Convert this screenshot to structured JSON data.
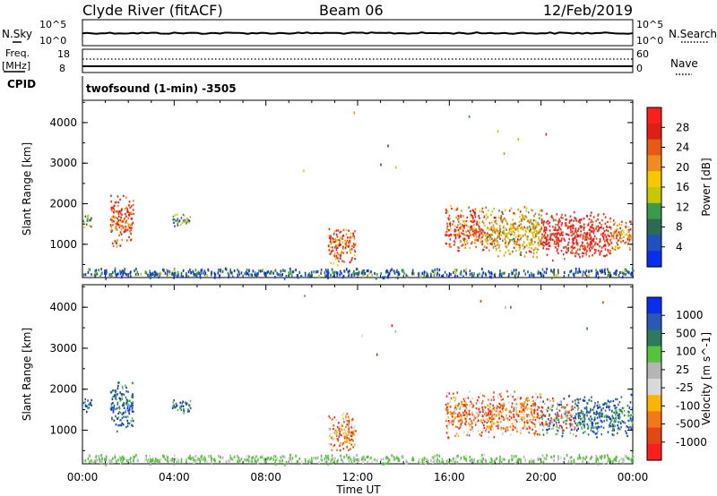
{
  "header": {
    "station": "Clyde River (fitACF)",
    "beam": "Beam 06",
    "date": "12/Feb/2019"
  },
  "strip_panels": {
    "nsky_label": "N.Sky",
    "nsearch_label": "N.Search",
    "noise_ticks": [
      "10^5",
      "10^0"
    ],
    "freq_label": "Freq.",
    "freq_unit": "[MHz]",
    "freq_ticks": [
      "18",
      "8"
    ],
    "nave_label": "Nave",
    "nave_ticks": [
      "60",
      "0"
    ],
    "cpid_label": "CPID",
    "cpid_text": "twofsound (1-min) -3505"
  },
  "colors": {
    "power": [
      "#0a2ef0",
      "#1f4fc0",
      "#2e6a50",
      "#3c9a4a",
      "#c8c800",
      "#f5c800",
      "#f08c1e",
      "#e85a14",
      "#e01e14",
      "#ff1e1e"
    ],
    "velocity": [
      "#0a2ef0",
      "#2a58b4",
      "#2e7a5e",
      "#55c43c",
      "#b5b5b5",
      "#d9d9d9",
      "#ffb400",
      "#f57814",
      "#e64614",
      "#ff1e1e"
    ]
  },
  "chart_data": [
    {
      "type": "line",
      "title": "",
      "x_label": "",
      "y_label": "",
      "y_ticks_left": [
        "10^5",
        "10^0"
      ],
      "y_ticks_right": [
        "10^5",
        "10^0"
      ],
      "series": [
        {
          "name": "N.Sky",
          "description": "noise level near constant across the day"
        },
        {
          "name": "N.Search",
          "description": "noise level near constant across the day"
        }
      ]
    },
    {
      "type": "line",
      "title": "",
      "y_label": "Freq. [MHz]",
      "y_ticks_left": [
        "18",
        "8"
      ],
      "y_ticks_right": [
        "60",
        "0"
      ],
      "series": [
        {
          "name": "Freq.",
          "description": "near constant"
        },
        {
          "name": "Nave",
          "description": "near constant"
        }
      ]
    },
    {
      "type": "heatmap",
      "title": "",
      "ylabel": "Slant Range [km]",
      "xlabel": "Time UT",
      "x_ticks": [
        "00:00",
        "04:00",
        "08:00",
        "12:00",
        "16:00",
        "20:00",
        "00:00"
      ],
      "y_ticks": [
        "1000",
        "2000",
        "3000",
        "4000"
      ],
      "x_range_hours": [
        0,
        24
      ],
      "y_range_km": [
        180,
        4550
      ],
      "colorbar": {
        "label": "Power [dB]",
        "ticks": [
          "4",
          "8",
          "12",
          "16",
          "20",
          "24",
          "28"
        ],
        "range": [
          0,
          30
        ]
      },
      "scatter_regions": [
        {
          "t": [
            0.0,
            0.4
          ],
          "km": [
            1400,
            1800
          ],
          "level": 0.4
        },
        {
          "t": [
            1.2,
            2.2
          ],
          "km": [
            900,
            2300
          ],
          "level": 0.8
        },
        {
          "t": [
            3.9,
            4.7
          ],
          "km": [
            1400,
            1800
          ],
          "level": 0.35
        },
        {
          "t": [
            10.7,
            11.9
          ],
          "km": [
            500,
            1500
          ],
          "level": 0.75
        },
        {
          "t": [
            15.8,
            17.5
          ],
          "km": [
            800,
            2000
          ],
          "level": 0.8
        },
        {
          "t": [
            17.5,
            20.0
          ],
          "km": [
            600,
            2000
          ],
          "level": 0.6
        },
        {
          "t": [
            20.0,
            23.0
          ],
          "km": [
            600,
            1900
          ],
          "level": 0.95
        },
        {
          "t": [
            23.0,
            23.9
          ],
          "km": [
            800,
            1700
          ],
          "level": 0.7
        },
        {
          "t": [
            0.0,
            24.0
          ],
          "km": [
            180,
            450
          ],
          "level": 0.2
        }
      ]
    },
    {
      "type": "heatmap",
      "title": "",
      "ylabel": "Slant Range [km]",
      "xlabel": "Time UT",
      "x_ticks": [
        "00:00",
        "04:00",
        "08:00",
        "12:00",
        "16:00",
        "20:00",
        "00:00"
      ],
      "y_ticks": [
        "1000",
        "2000",
        "3000",
        "4000"
      ],
      "x_range_hours": [
        0,
        24
      ],
      "y_range_km": [
        180,
        4550
      ],
      "colorbar": {
        "label": "Velocity [m s^-1]",
        "ticks": [
          "1000",
          "500",
          "100",
          "25",
          "-25",
          "-100",
          "-500",
          "-1000"
        ],
        "range": [
          -1000,
          1000
        ]
      },
      "scatter_regions": [
        {
          "t": [
            0.0,
            0.4
          ],
          "km": [
            1400,
            1800
          ],
          "class": "positive"
        },
        {
          "t": [
            1.2,
            2.2
          ],
          "km": [
            900,
            2300
          ],
          "class": "positive"
        },
        {
          "t": [
            3.9,
            4.7
          ],
          "km": [
            1400,
            1800
          ],
          "class": "positive"
        },
        {
          "t": [
            10.7,
            11.9
          ],
          "km": [
            500,
            1500
          ],
          "class": "negative"
        },
        {
          "t": [
            15.8,
            20.0
          ],
          "km": [
            800,
            2000
          ],
          "class": "negative"
        },
        {
          "t": [
            20.0,
            21.5
          ],
          "km": [
            800,
            1900
          ],
          "class": "mixed"
        },
        {
          "t": [
            21.5,
            24.0
          ],
          "km": [
            800,
            1900
          ],
          "class": "positive"
        },
        {
          "t": [
            0.0,
            24.0
          ],
          "km": [
            180,
            450
          ],
          "class": "ground"
        }
      ]
    }
  ]
}
